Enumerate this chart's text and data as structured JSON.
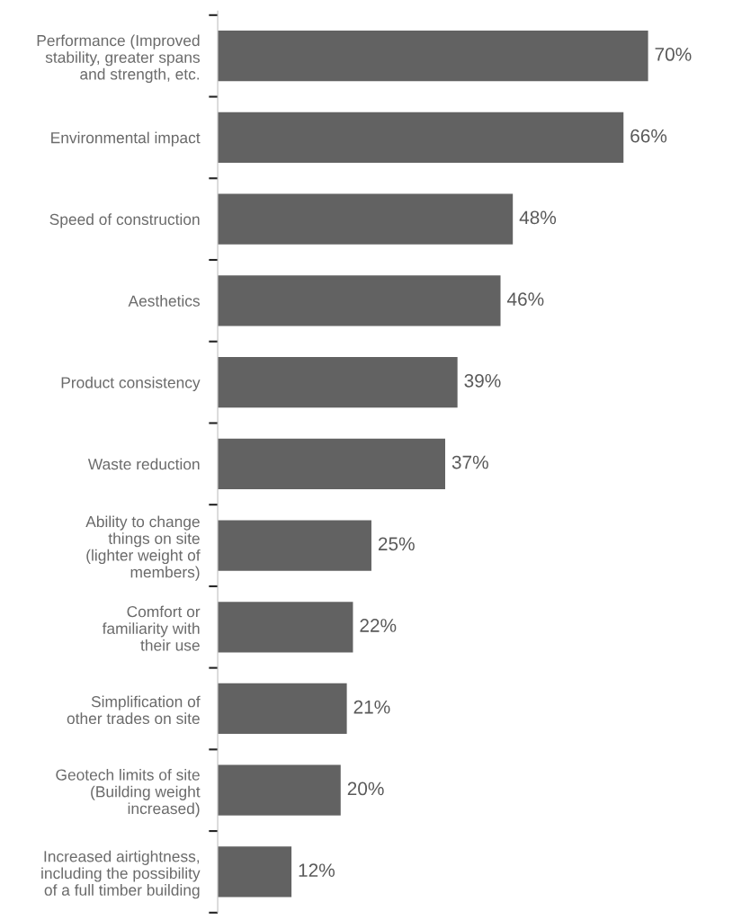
{
  "chart_data": {
    "type": "bar",
    "orientation": "horizontal",
    "categories": [
      "Performance (Improved\nstability, greater spans\nand strength, etc.",
      "Environmental impact",
      "Speed of construction",
      "Aesthetics",
      "Product consistency",
      "Waste reduction",
      "Ability to change\nthings on site\n(lighter weight of\nmembers)",
      "Comfort or\nfamiliarity with\ntheir use",
      "Simplification of\nother trades on site",
      "Geotech limits of site\n(Building weight\nincreased)",
      "Increased airtightness,\nincluding the possibility\nof a full timber building"
    ],
    "values": [
      70,
      66,
      48,
      46,
      39,
      37,
      25,
      22,
      21,
      20,
      12
    ],
    "value_labels": [
      "70%",
      "66%",
      "48%",
      "46%",
      "39%",
      "37%",
      "25%",
      "22%",
      "21%",
      "20%",
      "12%"
    ],
    "color": "#626262",
    "grid": false,
    "legend": false
  }
}
